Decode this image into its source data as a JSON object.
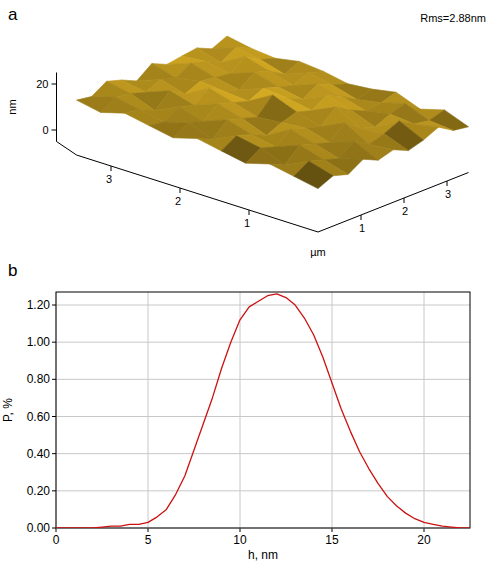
{
  "chart_data": [
    {
      "type": "surface",
      "title": "a",
      "annotations": [
        "Rms=2.88nm"
      ],
      "xlabel": "µm",
      "zlabel": "nm",
      "color": "#c8a020",
      "x": [
        0,
        0.35,
        0.7,
        1.05,
        1.4,
        1.75,
        2.1,
        2.45,
        2.8,
        3.15,
        3.5
      ],
      "y": [
        0,
        0.35,
        0.7,
        1.05,
        1.4,
        1.75,
        2.1,
        2.45,
        2.8,
        3.15,
        3.5
      ],
      "values": [
        [
          8,
          11,
          9,
          13,
          10,
          12,
          9,
          11,
          14,
          10,
          9
        ],
        [
          10,
          14,
          12,
          10,
          15,
          11,
          13,
          16,
          12,
          11,
          13
        ],
        [
          12,
          9,
          15,
          13,
          11,
          17,
          12,
          10,
          13,
          15,
          10
        ],
        [
          9,
          13,
          11,
          16,
          14,
          12,
          18,
          14,
          11,
          12,
          14
        ],
        [
          11,
          15,
          13,
          10,
          13,
          15,
          13,
          17,
          14,
          10,
          12
        ],
        [
          13,
          10,
          16,
          14,
          12,
          19,
          15,
          12,
          16,
          13,
          11
        ],
        [
          10,
          14,
          12,
          17,
          15,
          13,
          16,
          14,
          12,
          15,
          13
        ],
        [
          12,
          11,
          15,
          13,
          18,
          14,
          12,
          17,
          15,
          11,
          14
        ],
        [
          14,
          13,
          10,
          16,
          12,
          15,
          14,
          13,
          18,
          14,
          12
        ],
        [
          11,
          15,
          14,
          12,
          15,
          13,
          17,
          15,
          12,
          16,
          13
        ],
        [
          13,
          12,
          16,
          14,
          11,
          16,
          13,
          14,
          15,
          12,
          15
        ]
      ],
      "xlim": [
        0,
        3.5
      ],
      "ylim": [
        0,
        3.5
      ],
      "zlim": [
        -5,
        25
      ],
      "xticks": [
        1,
        2,
        3
      ],
      "yticks": [
        1,
        2,
        3
      ],
      "zticks": [
        0,
        20
      ]
    },
    {
      "type": "line",
      "title": "b",
      "xlabel": "h, nm",
      "ylabel": "P, %",
      "color": "#cc1111",
      "grid": true,
      "x": [
        0,
        0.5,
        1,
        1.5,
        2,
        2.5,
        3,
        3.5,
        4,
        4.5,
        5,
        5.5,
        6,
        6.5,
        7,
        7.5,
        8,
        8.5,
        9,
        9.5,
        10,
        10.5,
        11,
        11.5,
        12,
        12.5,
        13,
        13.5,
        14,
        14.5,
        15,
        15.5,
        16,
        16.5,
        17,
        17.5,
        18,
        18.5,
        19,
        19.5,
        20,
        20.5,
        21,
        21.5,
        22,
        22.5
      ],
      "values": [
        0,
        0,
        0,
        0,
        0,
        0.005,
        0.01,
        0.01,
        0.02,
        0.02,
        0.03,
        0.06,
        0.1,
        0.18,
        0.28,
        0.42,
        0.56,
        0.7,
        0.86,
        1.0,
        1.12,
        1.19,
        1.22,
        1.25,
        1.26,
        1.24,
        1.2,
        1.13,
        1.04,
        0.92,
        0.78,
        0.64,
        0.52,
        0.41,
        0.32,
        0.24,
        0.17,
        0.12,
        0.08,
        0.05,
        0.03,
        0.02,
        0.01,
        0.005,
        0,
        0
      ],
      "xlim": [
        0,
        22.5
      ],
      "ylim": [
        0,
        1.27
      ],
      "xticks": [
        0,
        5,
        10,
        15,
        20
      ],
      "yticks": [
        {
          "value": 0,
          "label": "0.00"
        },
        {
          "value": 0.2,
          "label": "0.20"
        },
        {
          "value": 0.4,
          "label": "0.40"
        },
        {
          "value": 0.6,
          "label": "0.60"
        },
        {
          "value": 0.8,
          "label": "0.80"
        },
        {
          "value": 1.0,
          "label": "1.00"
        },
        {
          "value": 1.2,
          "label": "1.20"
        }
      ]
    }
  ]
}
